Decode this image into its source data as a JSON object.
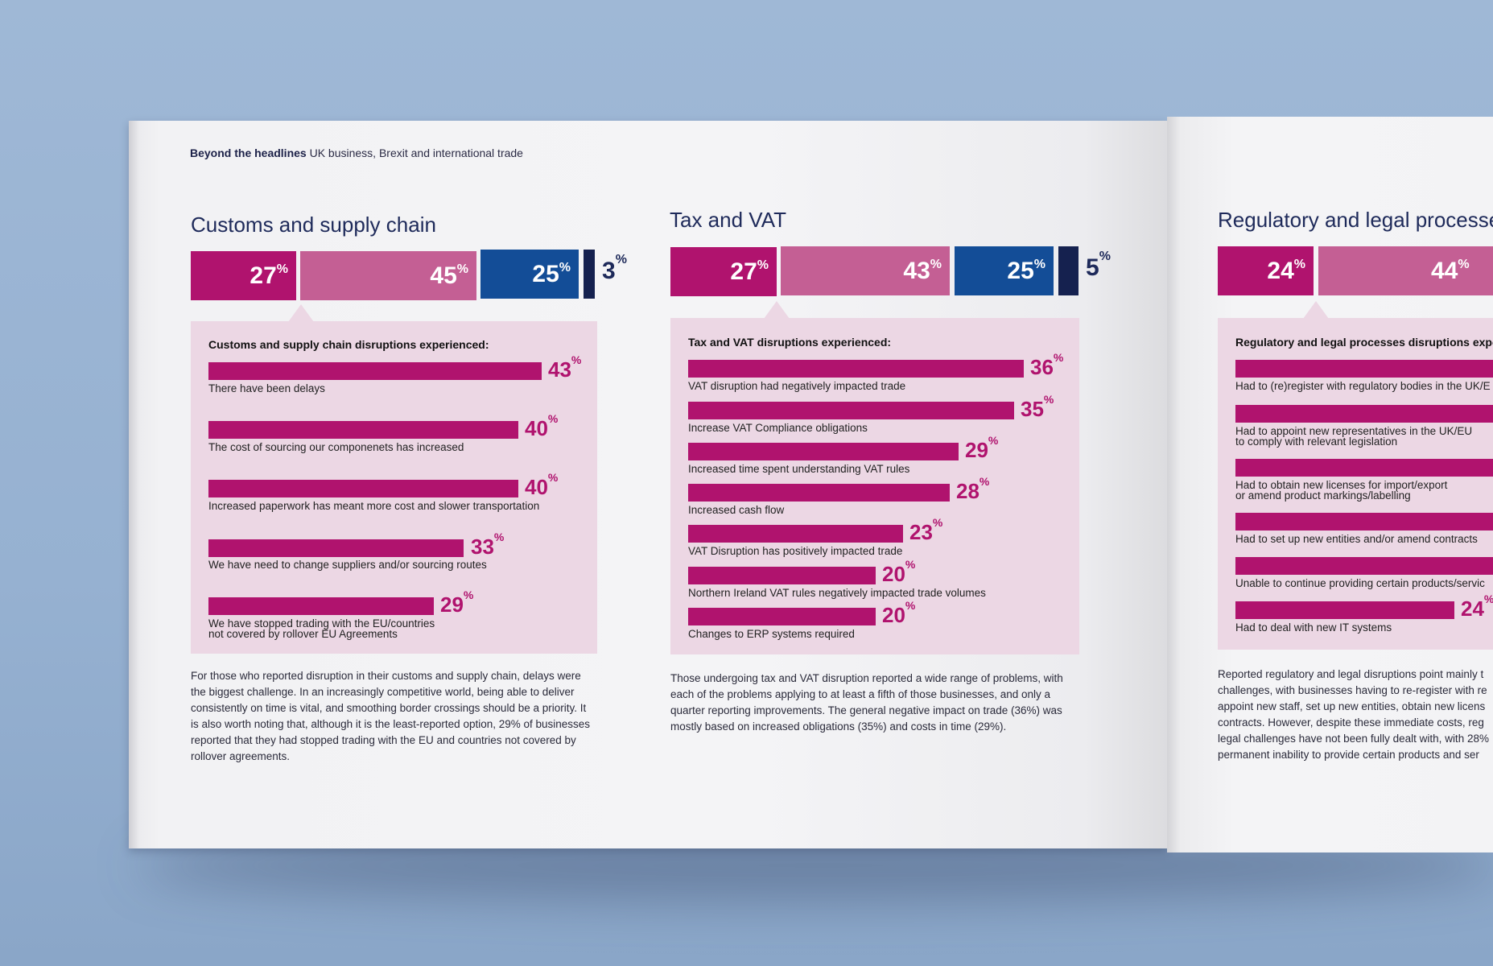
{
  "header": {
    "bold": "Beyond the headlines",
    "rest": "UK business, Brexit and international trade"
  },
  "colors": {
    "magenta": "#b0136e",
    "pink": "#c45f94",
    "blue": "#134d97",
    "navy": "#15214f",
    "panel": "#ecd7e4"
  },
  "sections": [
    {
      "title": "Customs and supply chain",
      "segments": [
        {
          "value": "27",
          "unit": "%"
        },
        {
          "value": "45",
          "unit": "%"
        },
        {
          "value": "25",
          "unit": "%"
        },
        {
          "value": "3",
          "unit": "%"
        }
      ],
      "panel_title": "Customs and supply chain disruptions experienced:",
      "items": [
        {
          "label": "There have been delays",
          "value": "43",
          "unit": "%"
        },
        {
          "label": "The cost of sourcing our componenets has increased",
          "value": "40",
          "unit": "%"
        },
        {
          "label": "Increased paperwork has meant more cost and slower transportation",
          "value": "40",
          "unit": "%"
        },
        {
          "label": "We have need to change suppliers and/or sourcing routes",
          "value": "33",
          "unit": "%"
        },
        {
          "label": "We have stopped trading with the EU/countries\nnot covered by rollover EU Agreements",
          "value": "29",
          "unit": "%"
        }
      ],
      "body": "For those who reported disruption in their customs and supply chain, delays were the biggest challenge. In an increasingly competitive world, being able to deliver consistently on time is vital, and smoothing border crossings should be a priority. It is also worth noting that, although it is the least-reported option, 29% of businesses reported that they had stopped trading with the EU and countries not covered by rollover agreements."
    },
    {
      "title": "Tax and VAT",
      "segments": [
        {
          "value": "27",
          "unit": "%"
        },
        {
          "value": "43",
          "unit": "%"
        },
        {
          "value": "25",
          "unit": "%"
        },
        {
          "value": "5",
          "unit": "%"
        }
      ],
      "panel_title": "Tax and VAT disruptions experienced:",
      "items": [
        {
          "label": "VAT disruption had negatively impacted trade",
          "value": "36",
          "unit": "%"
        },
        {
          "label": "Increase VAT Compliance obligations",
          "value": "35",
          "unit": "%"
        },
        {
          "label": "Increased time spent understanding VAT rules",
          "value": "29",
          "unit": "%"
        },
        {
          "label": "Increased cash flow",
          "value": "28",
          "unit": "%"
        },
        {
          "label": "VAT Disruption has positively impacted trade",
          "value": "23",
          "unit": "%"
        },
        {
          "label": "Northern Ireland VAT rules negatively impacted trade volumes",
          "value": "20",
          "unit": "%"
        },
        {
          "label": "Changes to ERP systems required",
          "value": "20",
          "unit": "%"
        }
      ],
      "body": "Those undergoing tax and VAT disruption reported a wide range of problems, with each of the problems applying to at least a fifth of those businesses, and only a quarter reporting improvements. The general negative impact on trade (36%) was mostly based on increased obligations (35%) and costs in time (29%)."
    },
    {
      "title": "Regulatory and legal processe",
      "segments": [
        {
          "value": "24",
          "unit": "%"
        },
        {
          "value": "44",
          "unit": "%"
        }
      ],
      "panel_title": "Regulatory and legal processes disruptions expe",
      "items": [
        {
          "label": "Had to (re)register with regulatory bodies in the UK/E",
          "value": "",
          "unit": ""
        },
        {
          "label": "Had to appoint new representatives in the UK/EU\nto comply with relevant legislation",
          "value": "",
          "unit": ""
        },
        {
          "label": "Had to obtain new licenses for import/export\nor amend product markings/labelling",
          "value": "",
          "unit": ""
        },
        {
          "label": "Had to set up new entities and/or amend contracts",
          "value": "",
          "unit": ""
        },
        {
          "label": "Unable to continue providing certain products/servic",
          "value": "",
          "unit": ""
        },
        {
          "label": "Had to deal with new IT systems",
          "value": "24",
          "unit": "%"
        }
      ],
      "body_lines": [
        "Reported regulatory and legal disruptions point mainly t",
        "challenges, with businesses having to re-register with re",
        "appoint new staff, set up new entities, obtain new licens",
        "contracts. However, despite these immediate costs, reg",
        "legal challenges have not been fully dealt with, with 28%",
        "permanent inability to provide certain products and ser"
      ]
    }
  ]
}
